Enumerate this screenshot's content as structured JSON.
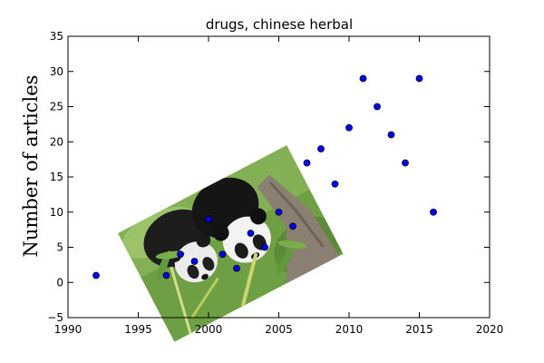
{
  "chart_data": {
    "type": "scatter",
    "title": "drugs, chinese herbal",
    "xlabel": "",
    "ylabel": "Number of articles",
    "xlim": [
      1990,
      2020
    ],
    "ylim": [
      -5,
      35
    ],
    "x_ticks": [
      1990,
      1995,
      2000,
      2005,
      2010,
      2015,
      2020
    ],
    "y_ticks": [
      -5,
      0,
      5,
      10,
      15,
      20,
      25,
      30,
      35
    ],
    "grid": false,
    "marker_color": "#0000ff",
    "marker_edge_color": "#000000",
    "points": [
      {
        "x": 1992,
        "y": 1
      },
      {
        "x": 1997,
        "y": 1
      },
      {
        "x": 1998,
        "y": 4
      },
      {
        "x": 1999,
        "y": 3
      },
      {
        "x": 2000,
        "y": 9
      },
      {
        "x": 2001,
        "y": 4
      },
      {
        "x": 2002,
        "y": 2
      },
      {
        "x": 2003,
        "y": 7
      },
      {
        "x": 2004,
        "y": 5
      },
      {
        "x": 2005,
        "y": 10
      },
      {
        "x": 2006,
        "y": 8
      },
      {
        "x": 2007,
        "y": 17
      },
      {
        "x": 2008,
        "y": 19
      },
      {
        "x": 2009,
        "y": 14
      },
      {
        "x": 2010,
        "y": 22
      },
      {
        "x": 2011,
        "y": 29
      },
      {
        "x": 2012,
        "y": 25
      },
      {
        "x": 2013,
        "y": 21
      },
      {
        "x": 2014,
        "y": 17
      },
      {
        "x": 2015,
        "y": 29
      },
      {
        "x": 2016,
        "y": 10
      }
    ]
  },
  "overlay_image": {
    "subject": "two giant pandas eating bamboo",
    "icon": "panda-photo"
  }
}
